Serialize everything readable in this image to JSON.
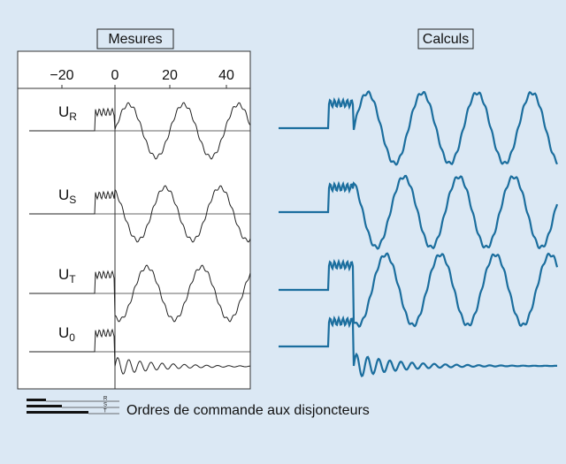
{
  "headers": {
    "left": "Mesures",
    "right": "Calculs"
  },
  "time_axis": [
    "−20",
    "0",
    "20",
    "40"
  ],
  "channels": [
    {
      "symbol": "U",
      "subscript": "R"
    },
    {
      "symbol": "U",
      "subscript": "S"
    },
    {
      "symbol": "U",
      "subscript": "T"
    },
    {
      "symbol": "U",
      "subscript": "0"
    }
  ],
  "breaker_phases": [
    "R",
    "S",
    "T"
  ],
  "caption": "Ordres de commande aux disjoncteurs"
}
